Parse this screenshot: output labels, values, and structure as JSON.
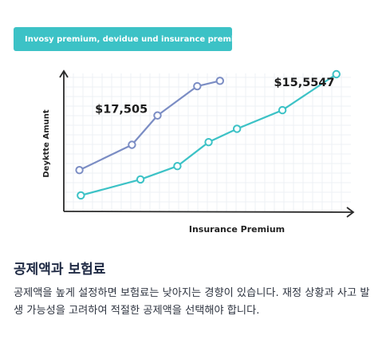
{
  "banner": {
    "label": "Invosy premium, devidue und insurance premium"
  },
  "chart_data": {
    "type": "line",
    "xlabel": "Insurance Premium",
    "ylabel": "Deyktte Amunt",
    "xlim": [
      0,
      100
    ],
    "ylim": [
      0,
      100
    ],
    "grid": true,
    "legend": "none",
    "series": [
      {
        "color": "#7b8dc4",
        "x": [
          5.5,
          24,
          33,
          47,
          55
        ],
        "y": [
          31,
          50,
          72,
          94,
          98
        ],
        "label": {
          "text": "$17,505",
          "x": 11,
          "y": 74
        }
      },
      {
        "color": "#3cc2c6",
        "x": [
          6,
          27,
          40,
          51,
          61,
          77,
          96
        ],
        "y": [
          12,
          24,
          34,
          52,
          62,
          76,
          103
        ],
        "label": {
          "text": "$15,5547",
          "x": 74,
          "y": 94
        }
      }
    ]
  },
  "section": {
    "title": "공제액과 보험료",
    "body": "공제액을 높게 설정하면 보험료는 낮아지는 경향이 있습니다. 재정 상황과 사고 발생 가능성을 고려하여 적절한 공제액을 선택해야 합니다."
  }
}
